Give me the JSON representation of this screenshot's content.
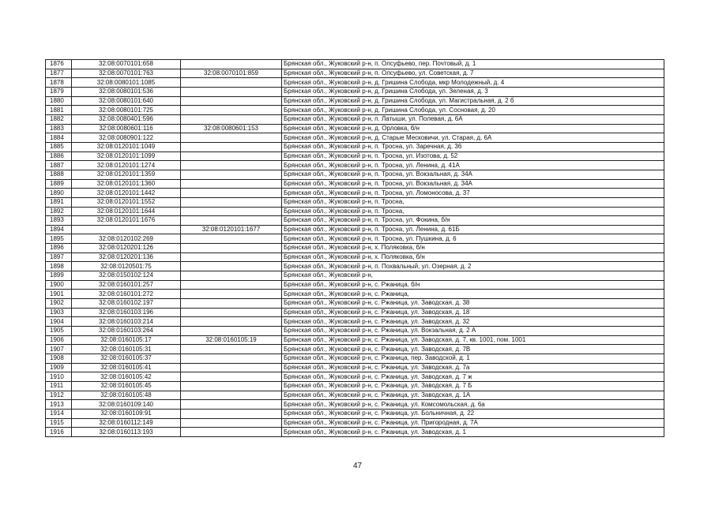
{
  "rows": [
    [
      "1876",
      "32:08:0070101:658",
      "",
      "Брянская обл., Жуковский р-н, п. Олсуфьево, пер. Почтовый, д. 1"
    ],
    [
      "1877",
      "32:08:0070101:763",
      "32:08:0070101:859",
      "Брянская обл., Жуковский р-н, п. Олсуфьево, ул. Советская, д. 7"
    ],
    [
      "1878",
      "32:08:0080101:1085",
      "",
      "Брянская обл., Жуковский р-н, д. Гришина Слобода, мкр Молодежный, д. 4"
    ],
    [
      "1879",
      "32:08:0080101:536",
      "",
      "Брянская обл., Жуковский р-н, д. Гришина Слобода, ул. Зеленая, д. 3"
    ],
    [
      "1880",
      "32:08:0080101:640",
      "",
      "Брянская обл., Жуковский р-н, д. Гришина Слобода, ул. Магистральная, д. 2 б"
    ],
    [
      "1881",
      "32:08:0080101:725",
      "",
      "Брянская обл., Жуковский р-н, д. Гришина Слобода, ул. Сосновая, д. 20"
    ],
    [
      "1882",
      "32:08:0080401:596",
      "",
      "Брянская обл., Жуковский р-н, п. Латыши, ул. Полевая, д. 6А"
    ],
    [
      "1883",
      "32:08:0080601:116",
      "32:08:0080601:153",
      "Брянская обл., Жуковский р-н, д. Орловка, б/н"
    ],
    [
      "1884",
      "32:08:0080901:122",
      "",
      "Брянская обл., Жуковский р-н, д. Старые Месковичи, ул. Старая, д. 6А"
    ],
    [
      "1885",
      "32:08:0120101:1049",
      "",
      "Брянская обл., Жуковский р-н, п. Тросна, ул. Заречная, д. 36"
    ],
    [
      "1886",
      "32:08:0120101:1099",
      "",
      "Брянская обл., Жуковский р-н, п. Тросна, ул. Изотова, д. 52"
    ],
    [
      "1887",
      "32:08:0120101:1274",
      "",
      "Брянская обл., Жуковский р-н, п. Тросна, ул. Ленина, д. 41А"
    ],
    [
      "1888",
      "32:08:0120101:1359",
      "",
      "Брянская обл., Жуковский р-н, п. Тросна, ул. Вокзальная, д. 34А"
    ],
    [
      "1889",
      "32:08:0120101:1360",
      "",
      "Брянская обл., Жуковский р-н, п. Тросна, ул. Вокзальная, д. 34А"
    ],
    [
      "1890",
      "32:08:0120101:1442",
      "",
      "Брянская обл., Жуковский р-н, п. Тросна, ул. Ломоносова, д. 37"
    ],
    [
      "1891",
      "32:08:0120101:1552",
      "",
      "Брянская обл., Жуковский р-н, п. Тросна,"
    ],
    [
      "1892",
      "32:08:0120101:1644",
      "",
      "Брянская обл., Жуковский р-н, п. Тросна,"
    ],
    [
      "1893",
      "32:08:0120101:1676",
      "",
      "Брянская обл., Жуковский р-н, п. Тросна, ул. Фокина, б/н"
    ],
    [
      "1894",
      "",
      "32:08:0120101:1677",
      "Брянская обл., Жуковский р-н, п. Тросна, ул. Ленина, д. 61Б"
    ],
    [
      "1895",
      "32:08:0120102:269",
      "",
      "Брянская обл., Жуковский р-н, п. Тросна, ул. Пушкина, д. 6"
    ],
    [
      "1896",
      "32:08:0120201:126",
      "",
      "Брянская обл., Жуковский р-н, х. Поляковка, б/н"
    ],
    [
      "1897",
      "32:08:0120201:136",
      "",
      "Брянская обл., Жуковский р-н, х. Поляковка, б/н"
    ],
    [
      "1898",
      "32:08:0120501:75",
      "",
      "Брянская обл., Жуковский р-н, п. Похвальный, ул. Озерная, д. 2"
    ],
    [
      "1899",
      "32:08:0150102:124",
      "",
      "Брянская обл., Жуковский р-н,"
    ],
    [
      "1900",
      "32:08:0160101:257",
      "",
      "Брянская обл., Жуковский р-н, с. Ржаница, б/н"
    ],
    [
      "1901",
      "32:08:0160101:272",
      "",
      "Брянская обл., Жуковский р-н, с. Ржаница,"
    ],
    [
      "1902",
      "32:08:0160102:197",
      "",
      "Брянская обл., Жуковский р-н, с. Ржаница, ул. Заводская, д. 38"
    ],
    [
      "1903",
      "32:08:0160103:196",
      "",
      "Брянская обл., Жуковский р-н, с. Ржаница, ул. Заводская, д. 18"
    ],
    [
      "1904",
      "32:08:0160103:214",
      "",
      "Брянская обл., Жуковский р-н, с. Ржаница, ул. Заводская, д. 32"
    ],
    [
      "1905",
      "32:08:0160103:264",
      "",
      "Брянская обл., Жуковский р-н, с. Ржаница, ул. Вокзальная, д. 2 А"
    ],
    [
      "1906",
      "32:08:0160105:17",
      "32:08:0160105:19",
      "Брянская обл., Жуковский р-н, с. Ржаница, ул. Заводская, д. 7, кв. 1001, пом. 1001"
    ],
    [
      "1907",
      "32:08:0160105:31",
      "",
      "Брянская обл., Жуковский р-н, с. Ржаница, ул. Заводская, д. 7В"
    ],
    [
      "1908",
      "32:08:0160105:37",
      "",
      "Брянская обл., Жуковский р-н, с. Ржаница, пер. Заводской, д. 1"
    ],
    [
      "1909",
      "32:08:0160105:41",
      "",
      "Брянская обл., Жуковский р-н, с. Ржаница, ул. Заводская, д. 7а"
    ],
    [
      "1910",
      "32:08:0160105:42",
      "",
      "Брянская обл., Жуковский р-н, с. Ржаница, ул. Заводская, д. 7 ж"
    ],
    [
      "1911",
      "32:08:0160105:45",
      "",
      "Брянская обл., Жуковский р-н, с. Ржаница, ул. Заводская, д. 7 Б"
    ],
    [
      "1912",
      "32:08:0160105:48",
      "",
      "Брянская обл., Жуковский р-н, с. Ржаница, ул. Заводская, д. 1А"
    ],
    [
      "1913",
      "32:08:0160109:140",
      "",
      "Брянская обл., Жуковский р-н, с. Ржаница, ул. Комсомольская, д. 6а"
    ],
    [
      "1914",
      "32:08:0160109:91",
      "",
      "Брянская обл., Жуковский р-н, с. Ржаница, ул. Больничная, д. 22"
    ],
    [
      "1915",
      "32:08:0160112:149",
      "",
      "Брянская обл., Жуковский р-н, с. Ржаница, ул. Пригородная, д. 7А"
    ],
    [
      "1916",
      "32:08:0160113:193",
      "",
      "Брянская обл., Жуковский р-н, с. Ржаница, ул. Заводская, д. 1"
    ]
  ],
  "page_number": "47"
}
